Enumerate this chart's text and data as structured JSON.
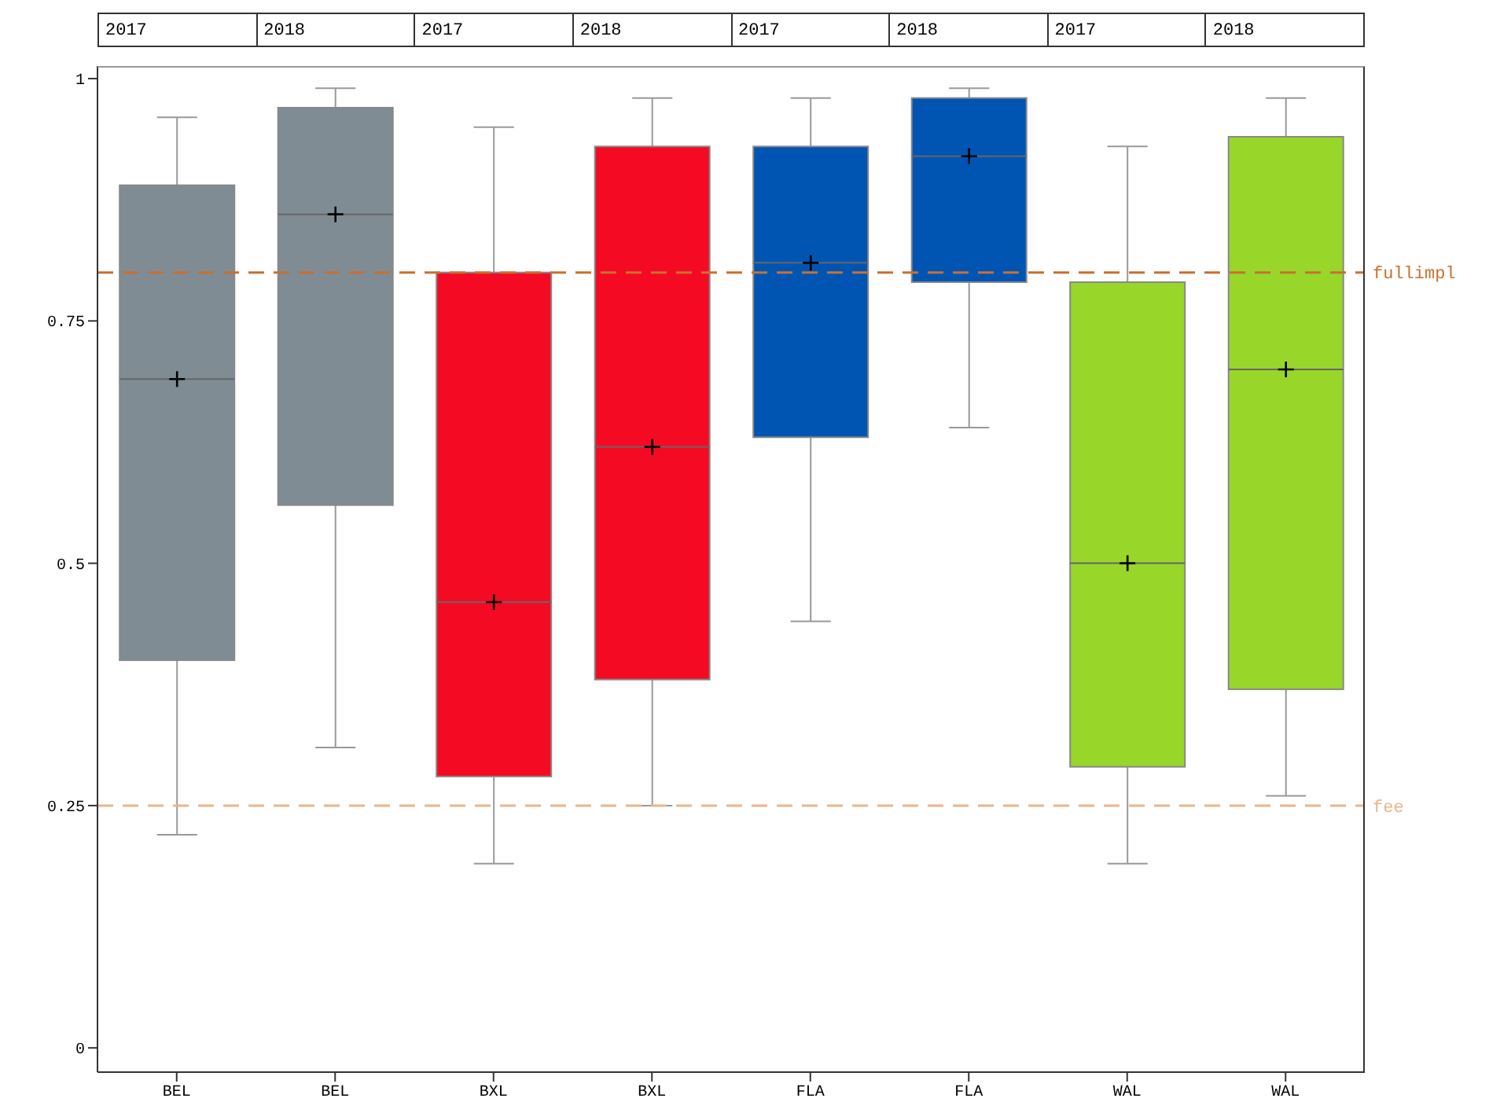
{
  "chart_data": {
    "type": "box",
    "categories": [
      "BEL",
      "BEL",
      "BXL",
      "BXL",
      "FLA",
      "FLA",
      "WAL",
      "WAL"
    ],
    "colors": [
      "#7f8c94",
      "#7f8c94",
      "#f50a23",
      "#f50a23",
      "#0055b3",
      "#0055b3",
      "#99d62a",
      "#99d62a"
    ],
    "boxes": [
      {
        "low": 0.22,
        "q1": 0.4,
        "median": 0.69,
        "q3": 0.89,
        "high": 0.96,
        "mean": 0.69
      },
      {
        "low": 0.31,
        "q1": 0.56,
        "median": 0.86,
        "q3": 0.97,
        "high": 0.99,
        "mean": 0.86
      },
      {
        "low": 0.19,
        "q1": 0.28,
        "median": 0.46,
        "q3": 0.8,
        "high": 0.95,
        "mean": 0.46
      },
      {
        "low": 0.25,
        "q1": 0.38,
        "median": 0.62,
        "q3": 0.93,
        "high": 0.98,
        "mean": 0.62
      },
      {
        "low": 0.44,
        "q1": 0.63,
        "median": 0.81,
        "q3": 0.93,
        "high": 0.98,
        "mean": 0.81
      },
      {
        "low": 0.64,
        "q1": 0.79,
        "median": 0.92,
        "q3": 0.98,
        "high": 0.99,
        "mean": 0.92
      },
      {
        "low": 0.19,
        "q1": 0.29,
        "median": 0.5,
        "q3": 0.79,
        "high": 0.93,
        "mean": 0.5
      },
      {
        "low": 0.26,
        "q1": 0.37,
        "median": 0.7,
        "q3": 0.94,
        "high": 0.98,
        "mean": 0.7
      }
    ],
    "annotations": [
      "2017",
      "2018",
      "2017",
      "2018",
      "2017",
      "2018",
      "2017",
      "2018"
    ],
    "ref_lines": [
      {
        "axis": "y",
        "value": 0.8,
        "label": "fullimpl",
        "color": "#c8702f",
        "line_style": "dashed"
      },
      {
        "axis": "y",
        "value": 0.25,
        "label": "fee",
        "color": "#e9b58c",
        "line_style": "dashed"
      }
    ],
    "ylim": [
      -0.025,
      1.013
    ],
    "yticks": [
      0,
      0.25,
      0.5,
      0.75,
      1
    ],
    "marker": "cross",
    "grid": false
  }
}
